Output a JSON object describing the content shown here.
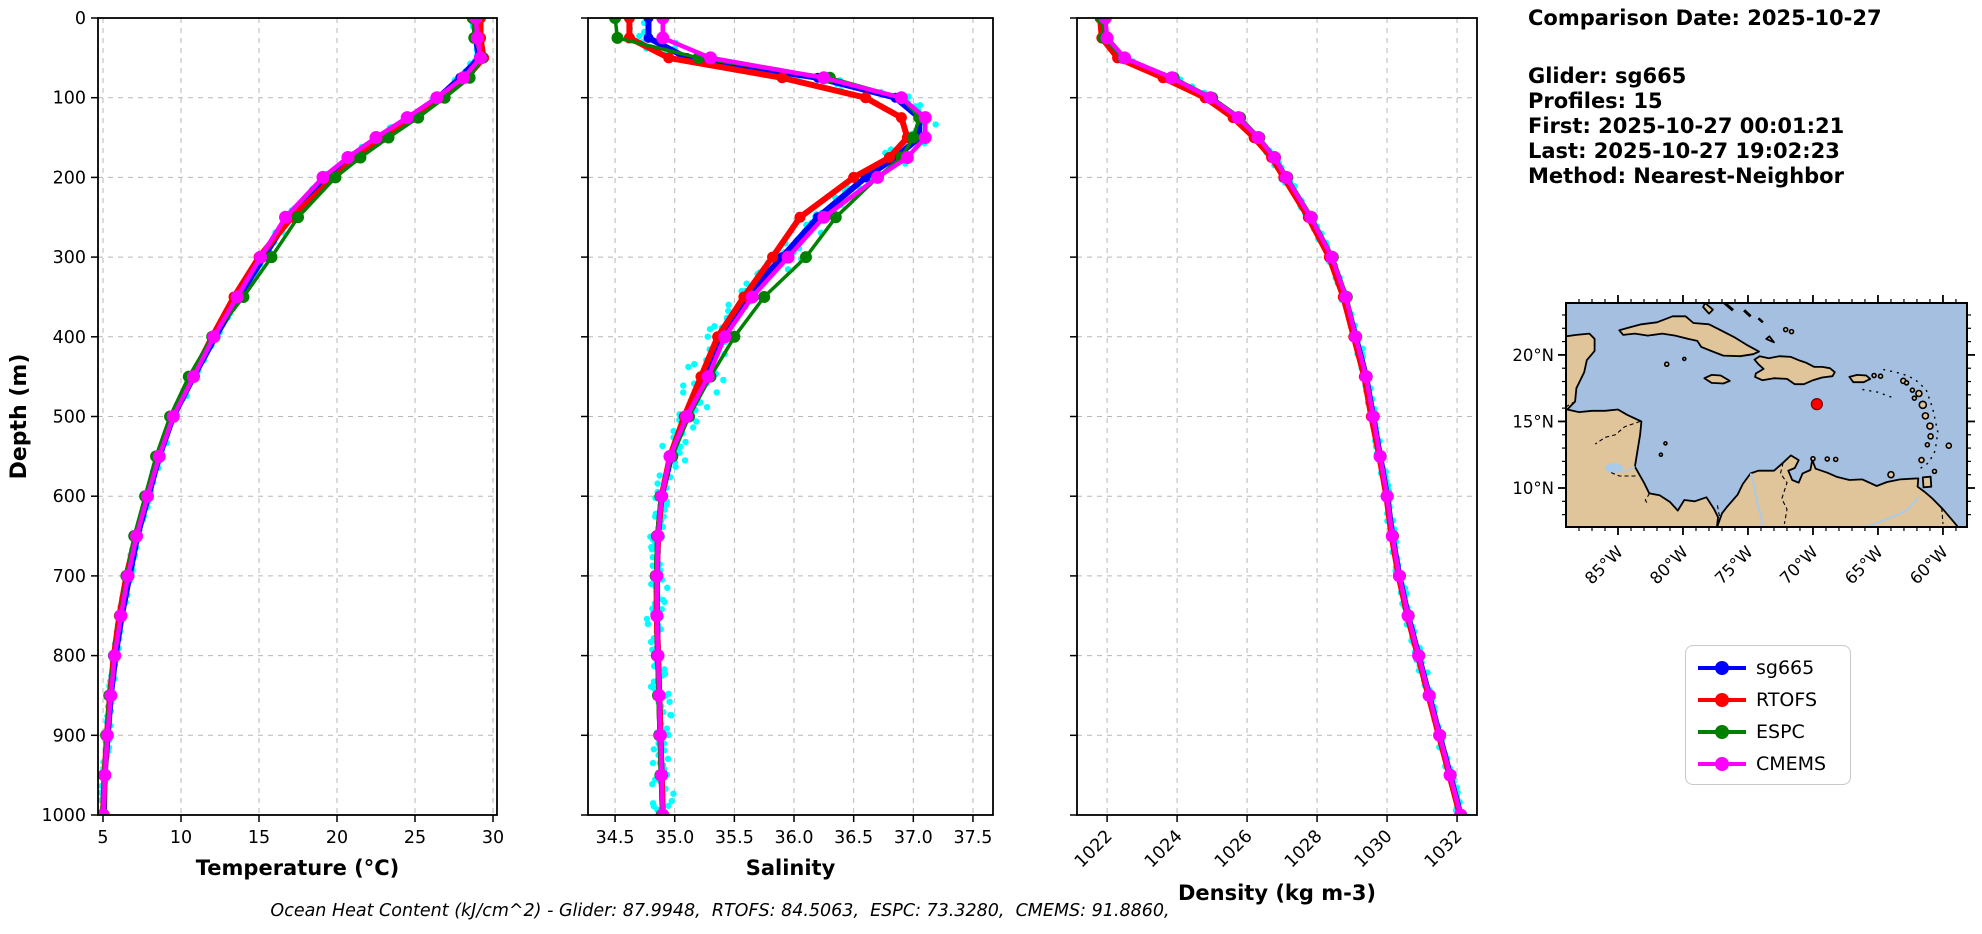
{
  "info": {
    "title": "Comparison Date: 2025-10-27",
    "lines": [
      "Glider: sg665",
      "Profiles: 15",
      "First: 2025-10-27 00:01:21",
      "Last: 2025-10-27 19:02:23",
      "Method: Nearest-Neighbor"
    ]
  },
  "caption": "Ocean Heat Content (kJ/cm^2) - Glider: 87.9948,  RTOFS: 84.5063,  ESPC: 73.3280,  CMEMS: 91.8860,",
  "legend": {
    "items": [
      {
        "label": "sg665",
        "color": "#0000ff"
      },
      {
        "label": "RTOFS",
        "color": "#ff0000"
      },
      {
        "label": "ESPC",
        "color": "#008000"
      },
      {
        "label": "CMEMS",
        "color": "#ff00ff"
      }
    ]
  },
  "map": {
    "lon_tick_labels": [
      "85°W",
      "80°W",
      "75°W",
      "70°W",
      "65°W",
      "60°W"
    ],
    "lon_ticks_w": [
      85,
      80,
      75,
      70,
      65,
      60
    ],
    "lat_tick_labels": [
      "20°N",
      "15°N",
      "10°N"
    ],
    "lat_ticks_n": [
      20,
      15,
      10
    ],
    "marker": {
      "lon_w": 69.7,
      "lat_n": 16.3,
      "color": "#ff0000"
    },
    "ocean_color": "#a4bfe0",
    "land_color": "#e0c49a",
    "coast_color": "#000000",
    "river_color": "#aacbe8"
  },
  "chart_data": {
    "type": "line",
    "ylabel": "Depth (m)",
    "ylim": [
      0,
      1000
    ],
    "yticks": [
      0,
      100,
      200,
      300,
      400,
      500,
      600,
      700,
      800,
      900,
      1000
    ],
    "ytick_labels": [
      "0",
      "100",
      "200",
      "300",
      "400",
      "500",
      "600",
      "700",
      "800",
      "900",
      "1000"
    ],
    "legend_entries": [
      "sg665",
      "RTOFS",
      "ESPC",
      "CMEMS"
    ],
    "series_colors": {
      "sg665": "#0000ff",
      "RTOFS": "#ff0000",
      "ESPC": "#008000",
      "CMEMS": "#ff00ff",
      "glider_raw": "#00ffff"
    },
    "depths": [
      0,
      25,
      50,
      75,
      100,
      125,
      150,
      175,
      200,
      250,
      300,
      350,
      400,
      450,
      500,
      550,
      600,
      650,
      700,
      750,
      800,
      850,
      900,
      950,
      1000
    ],
    "plots": [
      {
        "id": "temperature",
        "xlabel": "Temperature (°C)",
        "xlim": [
          4.679,
          30.256
        ],
        "xticks": [
          5,
          10,
          15,
          20,
          25,
          30
        ],
        "xtick_labels": [
          "5",
          "10",
          "15",
          "20",
          "25",
          "30"
        ],
        "rotate_xticklabels": false,
        "raw_scatter_jitter": 0.22,
        "series": {
          "sg665": [
            28.9,
            28.9,
            29.1,
            27.9,
            26.5,
            24.6,
            22.6,
            20.8,
            19.2,
            16.9,
            15.3,
            13.7,
            12.2,
            10.8,
            9.5,
            8.6,
            7.9,
            7.2,
            6.7,
            6.2,
            5.8,
            5.5,
            5.3,
            5.1,
            5.05
          ],
          "RTOFS": [
            29.2,
            29.2,
            29.4,
            28.3,
            26.6,
            24.8,
            22.9,
            21.2,
            19.8,
            17.1,
            15.0,
            13.4,
            12.0,
            10.7,
            9.4,
            8.5,
            7.8,
            7.1,
            6.5,
            6.05,
            5.7,
            5.45,
            5.25,
            5.1,
            5.0
          ],
          "ESPC": [
            28.7,
            28.8,
            29.3,
            28.5,
            26.9,
            25.2,
            23.3,
            21.5,
            19.9,
            17.5,
            15.8,
            14.0,
            12.0,
            10.5,
            9.3,
            8.4,
            7.7,
            7.0,
            6.5,
            6.1,
            5.7,
            5.4,
            5.2,
            5.05,
            4.95
          ],
          "CMEMS": [
            28.9,
            29.0,
            29.2,
            28.1,
            26.4,
            24.5,
            22.5,
            20.7,
            19.1,
            16.7,
            15.1,
            13.6,
            12.1,
            10.8,
            9.5,
            8.6,
            7.85,
            7.15,
            6.6,
            6.15,
            5.75,
            5.5,
            5.28,
            5.12,
            5.02
          ]
        }
      },
      {
        "id": "salinity",
        "xlabel": "Salinity",
        "xlim": [
          34.273,
          37.668
        ],
        "xticks": [
          34.5,
          35.0,
          35.5,
          36.0,
          36.5,
          37.0,
          37.5
        ],
        "xtick_labels": [
          "34.5",
          "35.0",
          "35.5",
          "36.0",
          "36.5",
          "37.0",
          "37.5"
        ],
        "rotate_xticklabels": false,
        "raw_scatter_jitter": 0.1,
        "series": {
          "sg665": [
            34.78,
            34.78,
            35.1,
            36.2,
            36.85,
            37.05,
            37.05,
            36.85,
            36.6,
            36.2,
            35.9,
            35.6,
            35.38,
            35.25,
            35.1,
            34.97,
            34.89,
            34.86,
            34.85,
            34.85,
            34.86,
            34.87,
            34.88,
            34.89,
            34.9
          ],
          "RTOFS": [
            34.62,
            34.62,
            34.95,
            35.9,
            36.6,
            36.9,
            36.95,
            36.8,
            36.5,
            36.05,
            35.82,
            35.58,
            35.36,
            35.22,
            35.08,
            34.96,
            34.89,
            34.86,
            34.85,
            34.85,
            34.86,
            34.87,
            34.88,
            34.89,
            34.9
          ],
          "ESPC": [
            34.5,
            34.52,
            35.2,
            36.3,
            36.9,
            37.05,
            37.0,
            36.9,
            36.7,
            36.35,
            36.1,
            35.75,
            35.5,
            35.3,
            35.12,
            34.98,
            34.88,
            34.85,
            34.84,
            34.85,
            34.85,
            34.86,
            34.87,
            34.88,
            34.89
          ],
          "CMEMS": [
            34.9,
            34.9,
            35.3,
            36.25,
            36.9,
            37.1,
            37.1,
            36.95,
            36.7,
            36.25,
            35.95,
            35.65,
            35.42,
            35.28,
            35.1,
            34.96,
            34.89,
            34.86,
            34.85,
            34.85,
            34.86,
            34.87,
            34.88,
            34.89,
            34.9
          ]
        }
      },
      {
        "id": "density",
        "xlabel": "Density (kg m-3)",
        "xlim": [
          1021.14,
          1032.57
        ],
        "xticks": [
          1022,
          1024,
          1026,
          1028,
          1030,
          1032
        ],
        "xtick_labels": [
          "1022",
          "1024",
          "1026",
          "1028",
          "1030",
          "1032"
        ],
        "rotate_xticklabels": true,
        "raw_scatter_jitter": 0.12,
        "series": {
          "sg665": [
            1021.9,
            1021.95,
            1022.4,
            1023.8,
            1024.9,
            1025.7,
            1026.3,
            1026.75,
            1027.1,
            1027.8,
            1028.4,
            1028.8,
            1029.1,
            1029.4,
            1029.6,
            1029.8,
            1030.0,
            1030.15,
            1030.35,
            1030.6,
            1030.9,
            1031.2,
            1031.5,
            1031.8,
            1032.1
          ],
          "RTOFS": [
            1021.8,
            1021.85,
            1022.3,
            1023.6,
            1024.8,
            1025.6,
            1026.2,
            1026.7,
            1027.05,
            1027.75,
            1028.35,
            1028.75,
            1029.05,
            1029.35,
            1029.55,
            1029.78,
            1029.98,
            1030.13,
            1030.33,
            1030.58,
            1030.88,
            1031.18,
            1031.48,
            1031.78,
            1032.08
          ],
          "ESPC": [
            1021.85,
            1021.9,
            1022.45,
            1023.9,
            1025.0,
            1025.8,
            1026.35,
            1026.8,
            1027.15,
            1027.85,
            1028.45,
            1028.85,
            1029.12,
            1029.42,
            1029.62,
            1029.82,
            1030.02,
            1030.17,
            1030.37,
            1030.62,
            1030.92,
            1031.22,
            1031.52,
            1031.82,
            1032.12
          ],
          "CMEMS": [
            1021.95,
            1022.0,
            1022.5,
            1023.85,
            1024.95,
            1025.75,
            1026.32,
            1026.78,
            1027.12,
            1027.82,
            1028.42,
            1028.82,
            1029.1,
            1029.4,
            1029.6,
            1029.8,
            1030.0,
            1030.15,
            1030.35,
            1030.6,
            1030.9,
            1031.2,
            1031.5,
            1031.8,
            1032.1
          ]
        }
      }
    ]
  }
}
